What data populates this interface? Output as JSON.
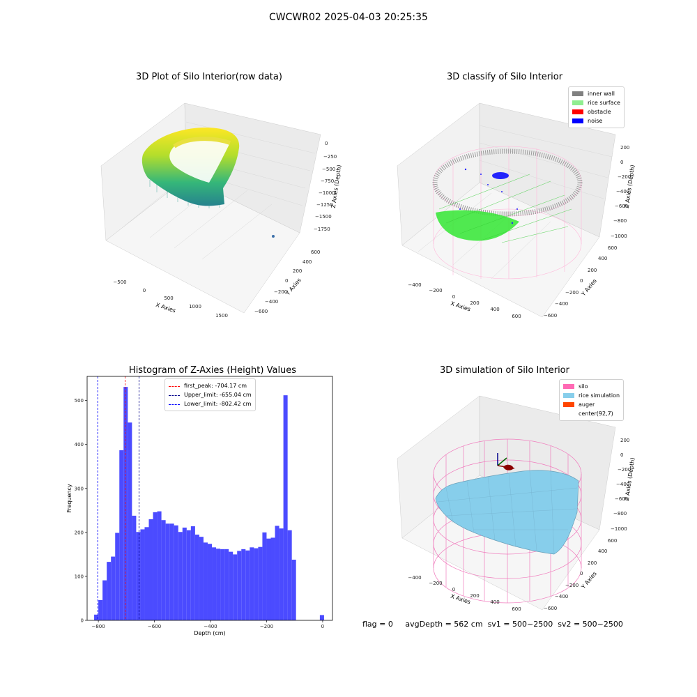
{
  "suptitle": "CWCWR02 2025-04-03 20:25:35",
  "chart_data": [
    {
      "type": "scatter3d",
      "title": "3D Plot of Silo Interior(row data)",
      "xlabel": "X Axies",
      "ylabel": "Y Axies",
      "zlabel": "Z Axies (Depth)",
      "x_ticks": [
        "−500",
        "0",
        "500",
        "1000",
        "1500"
      ],
      "y_ticks": [
        "−600",
        "−400",
        "−200",
        "0",
        "200",
        "400",
        "600"
      ],
      "z_ticks": [
        "0",
        "−250",
        "−500",
        "−750",
        "−1000",
        "−1250",
        "−1500",
        "−1750"
      ],
      "colormap": "viridis"
    },
    {
      "type": "scatter3d",
      "title": "3D classify of Silo Interior",
      "xlabel": "X Axies",
      "ylabel": "Y Axies",
      "zlabel": "Z Axies (Depth)",
      "x_ticks": [
        "−400",
        "−200",
        "0",
        "200",
        "400",
        "600"
      ],
      "y_ticks": [
        "−600",
        "−400",
        "−200",
        "0",
        "200",
        "400",
        "600"
      ],
      "z_ticks": [
        "200",
        "0",
        "−200",
        "−400",
        "−600",
        "−800",
        "−1000"
      ],
      "legend": [
        {
          "label": "inner wall",
          "color": "#808080"
        },
        {
          "label": "rice surface",
          "color": "#90ee90"
        },
        {
          "label": "obstacle",
          "color": "#ff0000"
        },
        {
          "label": "noise",
          "color": "#0000ff"
        }
      ]
    },
    {
      "type": "bar",
      "title": "Histogram of Z-Axies (Height) Values",
      "xlabel": "Depth (cm)",
      "ylabel": "Frequency",
      "xlim": [
        -840,
        35
      ],
      "ylim": [
        0,
        555
      ],
      "x_ticks": [
        -800,
        -600,
        -400,
        -200,
        0
      ],
      "x_tick_labels": [
        "−800",
        "−600",
        "−400",
        "−200",
        "0"
      ],
      "y_ticks": [
        0,
        100,
        200,
        300,
        400,
        500
      ],
      "bar_color": "#4b4bff",
      "bins": [
        {
          "x0": -815,
          "x1": -800,
          "v": 13
        },
        {
          "x0": -800,
          "x1": -785,
          "v": 46
        },
        {
          "x0": -785,
          "x1": -770,
          "v": 91
        },
        {
          "x0": -770,
          "x1": -755,
          "v": 133
        },
        {
          "x0": -755,
          "x1": -740,
          "v": 145
        },
        {
          "x0": -740,
          "x1": -725,
          "v": 199
        },
        {
          "x0": -725,
          "x1": -710,
          "v": 387
        },
        {
          "x0": -710,
          "x1": -695,
          "v": 531
        },
        {
          "x0": -695,
          "x1": -680,
          "v": 450
        },
        {
          "x0": -680,
          "x1": -665,
          "v": 238
        },
        {
          "x0": -665,
          "x1": -650,
          "v": 201
        },
        {
          "x0": -650,
          "x1": -635,
          "v": 207
        },
        {
          "x0": -635,
          "x1": -620,
          "v": 212
        },
        {
          "x0": -620,
          "x1": -605,
          "v": 230
        },
        {
          "x0": -605,
          "x1": -590,
          "v": 246
        },
        {
          "x0": -590,
          "x1": -575,
          "v": 248
        },
        {
          "x0": -575,
          "x1": -560,
          "v": 228
        },
        {
          "x0": -560,
          "x1": -545,
          "v": 220
        },
        {
          "x0": -545,
          "x1": -530,
          "v": 220
        },
        {
          "x0": -530,
          "x1": -515,
          "v": 216
        },
        {
          "x0": -515,
          "x1": -500,
          "v": 201
        },
        {
          "x0": -500,
          "x1": -485,
          "v": 211
        },
        {
          "x0": -485,
          "x1": -470,
          "v": 205
        },
        {
          "x0": -470,
          "x1": -455,
          "v": 214
        },
        {
          "x0": -455,
          "x1": -440,
          "v": 195
        },
        {
          "x0": -440,
          "x1": -425,
          "v": 190
        },
        {
          "x0": -425,
          "x1": -410,
          "v": 177
        },
        {
          "x0": -410,
          "x1": -395,
          "v": 174
        },
        {
          "x0": -395,
          "x1": -380,
          "v": 166
        },
        {
          "x0": -380,
          "x1": -365,
          "v": 163
        },
        {
          "x0": -365,
          "x1": -350,
          "v": 162
        },
        {
          "x0": -350,
          "x1": -335,
          "v": 162
        },
        {
          "x0": -335,
          "x1": -320,
          "v": 156
        },
        {
          "x0": -320,
          "x1": -305,
          "v": 150
        },
        {
          "x0": -305,
          "x1": -290,
          "v": 158
        },
        {
          "x0": -290,
          "x1": -275,
          "v": 162
        },
        {
          "x0": -275,
          "x1": -260,
          "v": 159
        },
        {
          "x0": -260,
          "x1": -245,
          "v": 166
        },
        {
          "x0": -245,
          "x1": -230,
          "v": 164
        },
        {
          "x0": -230,
          "x1": -215,
          "v": 167
        },
        {
          "x0": -215,
          "x1": -200,
          "v": 200
        },
        {
          "x0": -200,
          "x1": -185,
          "v": 186
        },
        {
          "x0": -185,
          "x1": -170,
          "v": 188
        },
        {
          "x0": -170,
          "x1": -155,
          "v": 215
        },
        {
          "x0": -155,
          "x1": -140,
          "v": 209
        },
        {
          "x0": -140,
          "x1": -125,
          "v": 512
        },
        {
          "x0": -125,
          "x1": -110,
          "v": 205
        },
        {
          "x0": -110,
          "x1": -95,
          "v": 138
        },
        {
          "x0": -10,
          "x1": 5,
          "v": 12
        }
      ],
      "vlines": [
        {
          "label": "first_peak: -704.17 cm",
          "x": -704.17,
          "color": "#ff0000"
        },
        {
          "label": "Upper_limit: -655.04 cm",
          "x": -655.04,
          "color": "#00008b"
        },
        {
          "label": "Lower_limit: -802.42 cm",
          "x": -802.42,
          "color": "#0000ff"
        }
      ]
    },
    {
      "type": "surface3d",
      "title": "3D simulation of Silo Interior",
      "xlabel": "X Axies",
      "ylabel": "Y Axies",
      "zlabel": "Z Axies (Depth)",
      "x_ticks": [
        "−400",
        "−200",
        "0",
        "200",
        "400",
        "600"
      ],
      "y_ticks": [
        "−600",
        "−400",
        "−200",
        "0",
        "200",
        "400",
        "600"
      ],
      "z_ticks": [
        "200",
        "0",
        "−200",
        "−400",
        "−600",
        "−800",
        "−1000"
      ],
      "legend": [
        {
          "label": "silo",
          "color": "#ff69b4"
        },
        {
          "label": "rice simulation",
          "color": "#87ceeb"
        },
        {
          "label": "auger",
          "color": "#ff4500"
        },
        {
          "label": "center(92,7)",
          "color": ""
        }
      ]
    }
  ],
  "footer": {
    "flag": "flag = 0",
    "avg_depth": "avgDepth = 562 cm",
    "sv1": "sv1 = 500~2500",
    "sv2": "sv2 = 500~2500"
  }
}
